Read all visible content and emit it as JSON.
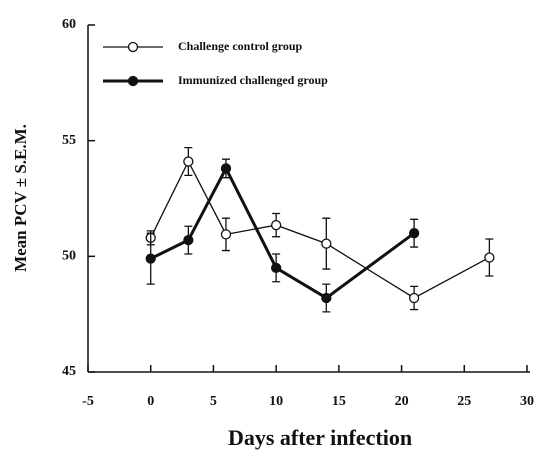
{
  "chart_data": {
    "type": "line",
    "xlabel": "Days after infection",
    "ylabel": "Mean PCV ± S.E.M.",
    "xlim": [
      -5,
      30
    ],
    "xticks": [
      -5,
      0,
      5,
      10,
      15,
      20,
      25,
      30
    ],
    "ylim": [
      45,
      60
    ],
    "yticks": [
      45,
      50,
      55,
      60
    ],
    "legend": "upper left",
    "series": [
      {
        "name": "Challenge control group",
        "color": "#111111",
        "marker": "open",
        "x": [
          0,
          3,
          6,
          10,
          14,
          21,
          27
        ],
        "values": [
          50.8,
          54.1,
          50.95,
          51.35,
          50.55,
          48.2,
          49.95
        ],
        "errors": [
          0.3,
          0.6,
          0.7,
          0.5,
          1.1,
          0.5,
          0.8
        ]
      },
      {
        "name": "Immunized challenged group",
        "color": "#111111",
        "marker": "filled",
        "x": [
          0,
          3,
          6,
          10,
          14,
          21
        ],
        "values": [
          49.9,
          50.7,
          53.8,
          49.5,
          48.2,
          51.0
        ],
        "errors": [
          1.1,
          0.6,
          0.4,
          0.6,
          0.6,
          0.6
        ]
      }
    ]
  }
}
